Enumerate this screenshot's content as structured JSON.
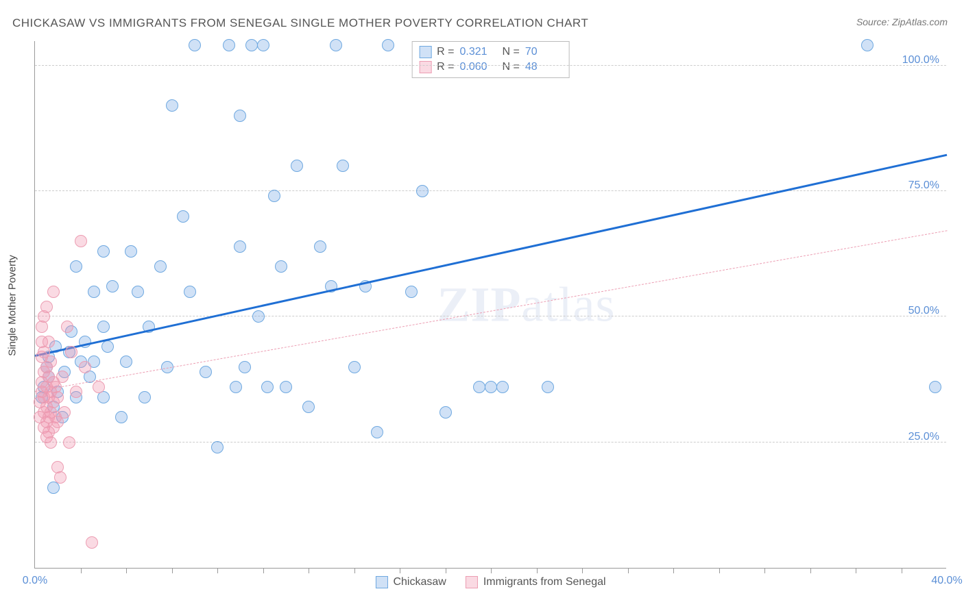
{
  "title": "CHICKASAW VS IMMIGRANTS FROM SENEGAL SINGLE MOTHER POVERTY CORRELATION CHART",
  "source_label": "Source: ZipAtlas.com",
  "ylabel": "Single Mother Poverty",
  "watermark_prefix": "ZIP",
  "watermark_suffix": "atlas",
  "chart": {
    "type": "scatter",
    "xlim": [
      0,
      40
    ],
    "ylim": [
      0,
      105
    ],
    "xtick_labels": [
      "0.0%",
      "40.0%"
    ],
    "xtick_positions": [
      0,
      40
    ],
    "xminor_ticks": [
      2,
      4,
      6,
      8,
      10,
      12,
      14,
      16,
      18,
      20,
      22,
      24,
      26,
      28,
      30,
      32,
      34,
      36,
      38
    ],
    "ytick_labels": [
      "25.0%",
      "50.0%",
      "75.0%",
      "100.0%"
    ],
    "ytick_positions": [
      25,
      50,
      75,
      100
    ],
    "background_color": "#ffffff",
    "grid_color": "#cccccc",
    "axis_color": "#999999",
    "label_color": "#5b8fd6",
    "marker_radius": 9,
    "series": [
      {
        "name": "Chickasaw",
        "fill": "rgba(120,170,230,0.35)",
        "stroke": "#6ea8e0",
        "trend": {
          "x1": 0,
          "y1": 42,
          "x2": 40,
          "y2": 82,
          "color": "#1f6fd4",
          "width": 3,
          "dash": "none"
        },
        "stats": {
          "R": "0.321",
          "N": "70"
        },
        "points": [
          [
            0.3,
            34
          ],
          [
            0.4,
            36
          ],
          [
            0.5,
            40
          ],
          [
            0.6,
            42
          ],
          [
            0.6,
            38
          ],
          [
            0.8,
            16
          ],
          [
            0.8,
            32
          ],
          [
            0.9,
            44
          ],
          [
            1.0,
            35
          ],
          [
            1.2,
            30
          ],
          [
            1.3,
            39
          ],
          [
            1.5,
            43
          ],
          [
            1.6,
            47
          ],
          [
            1.8,
            34
          ],
          [
            1.8,
            60
          ],
          [
            2.0,
            41
          ],
          [
            2.2,
            45
          ],
          [
            2.4,
            38
          ],
          [
            2.6,
            55
          ],
          [
            2.6,
            41
          ],
          [
            3.0,
            48
          ],
          [
            3.0,
            34
          ],
          [
            3.0,
            63
          ],
          [
            3.2,
            44
          ],
          [
            3.4,
            56
          ],
          [
            3.8,
            30
          ],
          [
            4.0,
            41
          ],
          [
            4.2,
            63
          ],
          [
            4.5,
            55
          ],
          [
            4.8,
            34
          ],
          [
            5.0,
            48
          ],
          [
            5.5,
            60
          ],
          [
            5.8,
            40
          ],
          [
            6.0,
            92
          ],
          [
            6.5,
            70
          ],
          [
            6.8,
            55
          ],
          [
            7.0,
            104
          ],
          [
            7.5,
            39
          ],
          [
            8.0,
            24
          ],
          [
            8.5,
            104
          ],
          [
            8.8,
            36
          ],
          [
            9.0,
            64
          ],
          [
            9.0,
            90
          ],
          [
            9.2,
            40
          ],
          [
            9.5,
            104
          ],
          [
            9.8,
            50
          ],
          [
            10.0,
            104
          ],
          [
            10.2,
            36
          ],
          [
            10.5,
            74
          ],
          [
            10.8,
            60
          ],
          [
            11.0,
            36
          ],
          [
            11.5,
            80
          ],
          [
            12.0,
            32
          ],
          [
            12.5,
            64
          ],
          [
            13.0,
            56
          ],
          [
            13.2,
            104
          ],
          [
            13.5,
            80
          ],
          [
            14.0,
            40
          ],
          [
            14.5,
            56
          ],
          [
            15.0,
            27
          ],
          [
            15.5,
            104
          ],
          [
            16.5,
            55
          ],
          [
            17.0,
            75
          ],
          [
            18.0,
            31
          ],
          [
            19.5,
            36
          ],
          [
            20.0,
            36
          ],
          [
            20.5,
            36
          ],
          [
            22.5,
            36
          ],
          [
            36.5,
            104
          ],
          [
            39.5,
            36
          ]
        ]
      },
      {
        "name": "Immigrants from Senegal",
        "fill": "rgba(240,150,175,0.35)",
        "stroke": "#ec9db2",
        "trend": {
          "x1": 0,
          "y1": 35,
          "x2": 40,
          "y2": 67,
          "color": "#ec9db2",
          "width": 1.5,
          "dash": "6,5"
        },
        "stats": {
          "R": "0.060",
          "N": "48"
        },
        "points": [
          [
            0.2,
            30
          ],
          [
            0.2,
            33
          ],
          [
            0.3,
            35
          ],
          [
            0.3,
            37
          ],
          [
            0.3,
            42
          ],
          [
            0.3,
            45
          ],
          [
            0.3,
            48
          ],
          [
            0.4,
            28
          ],
          [
            0.4,
            31
          ],
          [
            0.4,
            34
          ],
          [
            0.4,
            39
          ],
          [
            0.4,
            43
          ],
          [
            0.4,
            50
          ],
          [
            0.5,
            26
          ],
          [
            0.5,
            29
          ],
          [
            0.5,
            32
          ],
          [
            0.5,
            36
          ],
          [
            0.5,
            40
          ],
          [
            0.5,
            52
          ],
          [
            0.6,
            27
          ],
          [
            0.6,
            30
          ],
          [
            0.6,
            34
          ],
          [
            0.6,
            38
          ],
          [
            0.6,
            45
          ],
          [
            0.7,
            25
          ],
          [
            0.7,
            31
          ],
          [
            0.7,
            35
          ],
          [
            0.7,
            41
          ],
          [
            0.8,
            28
          ],
          [
            0.8,
            33
          ],
          [
            0.8,
            37
          ],
          [
            0.8,
            55
          ],
          [
            0.9,
            30
          ],
          [
            0.9,
            36
          ],
          [
            1.0,
            20
          ],
          [
            1.0,
            29
          ],
          [
            1.0,
            34
          ],
          [
            1.1,
            18
          ],
          [
            1.2,
            38
          ],
          [
            1.3,
            31
          ],
          [
            1.4,
            48
          ],
          [
            1.5,
            25
          ],
          [
            1.6,
            43
          ],
          [
            1.8,
            35
          ],
          [
            2.0,
            65
          ],
          [
            2.2,
            40
          ],
          [
            2.5,
            5
          ],
          [
            2.8,
            36
          ]
        ]
      }
    ],
    "series_legend_labels": [
      "Chickasaw",
      "Immigrants from Senegal"
    ],
    "stat_labels": {
      "R": "R =",
      "N": "N ="
    }
  }
}
